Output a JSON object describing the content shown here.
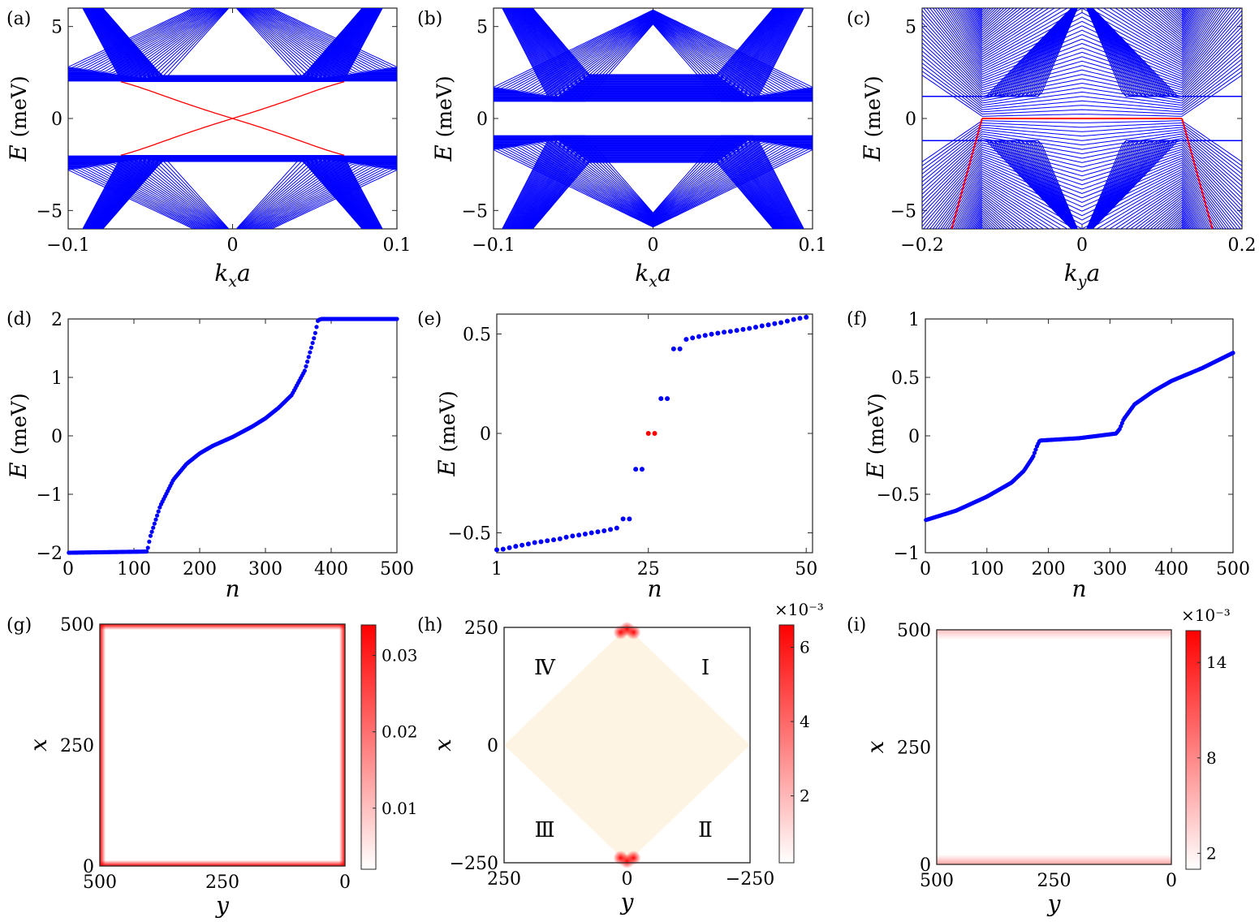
{
  "chart_data": [
    {
      "id": "a",
      "panel_label": "(a)",
      "type": "line",
      "xlabel": "k_x a",
      "xlabel_main": "k",
      "xlabel_sub": "x",
      "xlabel_tail": "a",
      "ylabel": "E (meV)",
      "ylabel_var": "E",
      "ylabel_unit": "(meV)",
      "xlim": [
        -0.1,
        0.1
      ],
      "ylim": [
        -6,
        6
      ],
      "xticks": [
        -0.1,
        0,
        0.1
      ],
      "xtick_labels": [
        "−0.1",
        "0",
        "0.1"
      ],
      "yticks": [
        -5,
        0,
        5
      ],
      "ytick_labels": [
        "−5",
        "0",
        "5"
      ],
      "series": [
        {
          "name": "bulk bands",
          "color": "#0000ff",
          "kind": "bands_gapped",
          "gap": 2.0,
          "edge_k": 0.068
        },
        {
          "name": "edge states",
          "color": "#ff0000",
          "kind": "edge_crossing",
          "k_range": [
            -0.068,
            0.068
          ],
          "E_end": 2.0
        }
      ]
    },
    {
      "id": "b",
      "panel_label": "(b)",
      "type": "line",
      "xlabel": "k_x a",
      "xlabel_main": "k",
      "xlabel_sub": "x",
      "xlabel_tail": "a",
      "ylabel": "E (meV)",
      "ylabel_var": "E",
      "ylabel_unit": "(meV)",
      "xlim": [
        -0.1,
        0.1
      ],
      "ylim": [
        -6,
        6
      ],
      "xticks": [
        -0.1,
        0,
        0.1
      ],
      "xtick_labels": [
        "−0.1",
        "0",
        "0.1"
      ],
      "yticks": [
        -5,
        0,
        5
      ],
      "ytick_labels": [
        "−5",
        "0",
        "5"
      ],
      "series": [
        {
          "name": "bulk bands",
          "color": "#0000ff",
          "kind": "bands_gapped",
          "gap": 0.9,
          "edge_k": 0.065
        }
      ]
    },
    {
      "id": "c",
      "panel_label": "(c)",
      "type": "line",
      "xlabel": "k_y a",
      "xlabel_main": "k",
      "xlabel_sub": "y",
      "xlabel_tail": "a",
      "ylabel": "E (meV)",
      "ylabel_var": "E",
      "ylabel_unit": "(meV)",
      "xlim": [
        -0.2,
        0.2
      ],
      "ylim": [
        -6,
        6
      ],
      "xticks": [
        -0.2,
        0,
        0.2
      ],
      "xtick_labels": [
        "−0.2",
        "0",
        "0.2"
      ],
      "yticks": [
        -5,
        0,
        5
      ],
      "ytick_labels": [
        "−5",
        "0",
        "5"
      ],
      "series": [
        {
          "name": "bulk bands",
          "color": "#0000ff",
          "kind": "bands_weyl",
          "node_k": 0.125
        },
        {
          "name": "flat edge state",
          "color": "#ff0000",
          "kind": "flat",
          "x": [
            -0.125,
            0.125
          ],
          "y": [
            0,
            0
          ]
        },
        {
          "name": "left edge branch",
          "color": "#ff0000",
          "kind": "line",
          "x": [
            -0.125,
            -0.163
          ],
          "y": [
            0,
            -6
          ]
        },
        {
          "name": "right edge branch",
          "color": "#ff0000",
          "kind": "line",
          "x": [
            0.125,
            0.163
          ],
          "y": [
            0,
            -6
          ]
        }
      ]
    },
    {
      "id": "d",
      "panel_label": "(d)",
      "type": "scatter",
      "xlabel": "n",
      "ylabel": "E (meV)",
      "ylabel_var": "E",
      "ylabel_unit": "(meV)",
      "xlim": [
        0,
        500
      ],
      "ylim": [
        -2,
        2
      ],
      "xticks": [
        0,
        100,
        200,
        300,
        400,
        500
      ],
      "xtick_labels": [
        "0",
        "100",
        "200",
        "300",
        "400",
        "500"
      ],
      "yticks": [
        -2,
        -1,
        0,
        1,
        2
      ],
      "ytick_labels": [
        "−2",
        "−1",
        "0",
        "1",
        "2"
      ],
      "curve": {
        "n": [
          1,
          120,
          125,
          140,
          160,
          180,
          200,
          220,
          250,
          280,
          300,
          320,
          340,
          360,
          375,
          380,
          385,
          500
        ],
        "E": [
          -2,
          -1.98,
          -1.72,
          -1.2,
          -0.75,
          -0.48,
          -0.3,
          -0.17,
          -0.02,
          0.16,
          0.3,
          0.48,
          0.7,
          1.12,
          1.72,
          1.98,
          2.0,
          2.0
        ]
      },
      "color": "#0000ff",
      "point_count": 250
    },
    {
      "id": "e",
      "panel_label": "(e)",
      "type": "scatter",
      "xlabel": "n",
      "ylabel": "E (meV)",
      "ylabel_var": "E",
      "ylabel_unit": "(meV)",
      "xlim": [
        1,
        51
      ],
      "ylim": [
        -0.6,
        0.6
      ],
      "xticks": [
        1,
        25,
        50
      ],
      "xtick_labels": [
        "1",
        "25",
        "50"
      ],
      "yticks": [
        -0.5,
        0,
        0.5
      ],
      "ytick_labels": [
        "−0.5",
        "0",
        "0.5"
      ],
      "points": [
        {
          "n": 1,
          "E": -0.585
        },
        {
          "n": 2,
          "E": -0.582
        },
        {
          "n": 3,
          "E": -0.575
        },
        {
          "n": 4,
          "E": -0.568
        },
        {
          "n": 5,
          "E": -0.562
        },
        {
          "n": 6,
          "E": -0.556
        },
        {
          "n": 7,
          "E": -0.549
        },
        {
          "n": 8,
          "E": -0.545
        },
        {
          "n": 9,
          "E": -0.54
        },
        {
          "n": 10,
          "E": -0.535
        },
        {
          "n": 11,
          "E": -0.53
        },
        {
          "n": 12,
          "E": -0.522
        },
        {
          "n": 13,
          "E": -0.516
        },
        {
          "n": 14,
          "E": -0.511
        },
        {
          "n": 15,
          "E": -0.506
        },
        {
          "n": 16,
          "E": -0.5
        },
        {
          "n": 17,
          "E": -0.495
        },
        {
          "n": 18,
          "E": -0.49
        },
        {
          "n": 19,
          "E": -0.483
        },
        {
          "n": 20,
          "E": -0.476
        },
        {
          "n": 21,
          "E": -0.43
        },
        {
          "n": 22,
          "E": -0.43
        },
        {
          "n": 23,
          "E": -0.18
        },
        {
          "n": 24,
          "E": -0.18
        },
        {
          "n": 25,
          "E": 0,
          "edge": true
        },
        {
          "n": 26,
          "E": 0,
          "edge": true
        },
        {
          "n": 27,
          "E": 0.175
        },
        {
          "n": 28,
          "E": 0.175
        },
        {
          "n": 29,
          "E": 0.425
        },
        {
          "n": 30,
          "E": 0.425
        },
        {
          "n": 31,
          "E": 0.473
        },
        {
          "n": 32,
          "E": 0.48
        },
        {
          "n": 33,
          "E": 0.487
        },
        {
          "n": 34,
          "E": 0.493
        },
        {
          "n": 35,
          "E": 0.499
        },
        {
          "n": 36,
          "E": 0.504
        },
        {
          "n": 37,
          "E": 0.509
        },
        {
          "n": 38,
          "E": 0.513
        },
        {
          "n": 39,
          "E": 0.518
        },
        {
          "n": 40,
          "E": 0.523
        },
        {
          "n": 41,
          "E": 0.528
        },
        {
          "n": 42,
          "E": 0.534
        },
        {
          "n": 43,
          "E": 0.541
        },
        {
          "n": 44,
          "E": 0.546
        },
        {
          "n": 45,
          "E": 0.552
        },
        {
          "n": 46,
          "E": 0.557
        },
        {
          "n": 47,
          "E": 0.565
        },
        {
          "n": 48,
          "E": 0.573
        },
        {
          "n": 49,
          "E": 0.579
        },
        {
          "n": 50,
          "E": 0.584
        }
      ],
      "color": "#0000ff",
      "edge_color": "#ff0000"
    },
    {
      "id": "f",
      "panel_label": "(f)",
      "type": "scatter",
      "xlabel": "n",
      "ylabel": "E (meV)",
      "ylabel_var": "E",
      "ylabel_unit": "(meV)",
      "xlim": [
        0,
        500
      ],
      "ylim": [
        -1,
        1
      ],
      "xticks": [
        0,
        100,
        200,
        300,
        400,
        500
      ],
      "xtick_labels": [
        "0",
        "100",
        "200",
        "300",
        "400",
        "500"
      ],
      "yticks": [
        -1,
        -0.5,
        0,
        0.5,
        1
      ],
      "ytick_labels": [
        "−1",
        "−0.5",
        "0",
        "0.5",
        "1"
      ],
      "curve": {
        "n": [
          1,
          50,
          100,
          140,
          160,
          175,
          182,
          186,
          250,
          310,
          316,
          322,
          340,
          370,
          400,
          450,
          500
        ],
        "E": [
          -0.72,
          -0.64,
          -0.52,
          -0.4,
          -0.3,
          -0.18,
          -0.08,
          -0.04,
          -0.02,
          0.02,
          0.06,
          0.14,
          0.27,
          0.38,
          0.47,
          0.58,
          0.71
        ]
      },
      "color": "#0000ff",
      "point_count": 250
    },
    {
      "id": "g",
      "panel_label": "(g)",
      "type": "heatmap",
      "xlabel": "y",
      "ylabel": "x",
      "xlim": [
        500,
        0
      ],
      "ylim": [
        0,
        500
      ],
      "xticks": [
        500,
        250,
        0
      ],
      "xtick_labels": [
        "500",
        "250",
        "0"
      ],
      "yticks": [
        0,
        250,
        500
      ],
      "ytick_labels": [
        "0",
        "250",
        "500"
      ],
      "geometry": "square",
      "edge_weight": "all edges",
      "colorbar": {
        "ticks": [
          0.01,
          0.02,
          0.03
        ],
        "tick_labels": [
          "0.01",
          "0.02",
          "0.03"
        ],
        "range": [
          0.002,
          0.034
        ],
        "multiplier": ""
      }
    },
    {
      "id": "h",
      "panel_label": "(h)",
      "type": "heatmap",
      "xlabel": "y",
      "ylabel": "x",
      "xlim": [
        250,
        -250
      ],
      "ylim": [
        -250,
        250
      ],
      "xticks": [
        250,
        0,
        -250
      ],
      "xtick_labels": [
        "250",
        "0",
        "−250"
      ],
      "yticks": [
        -250,
        0,
        250
      ],
      "ytick_labels": [
        "−250",
        "0",
        "250"
      ],
      "geometry": "diamond",
      "fill_color": "#fdf4e3",
      "edge_weight": "top and bottom corners",
      "regions": [
        "Ⅰ",
        "Ⅱ",
        "Ⅲ",
        "Ⅳ"
      ],
      "colorbar": {
        "ticks": [
          2,
          4,
          6
        ],
        "tick_labels": [
          "2",
          "4",
          "6"
        ],
        "range": [
          0.2,
          6.6
        ],
        "multiplier": "×10⁻³",
        "multiplier_base": "×10",
        "multiplier_exp": "−3"
      }
    },
    {
      "id": "i",
      "panel_label": "(i)",
      "type": "heatmap",
      "xlabel": "y",
      "ylabel": "x",
      "xlim": [
        500,
        0
      ],
      "ylim": [
        0,
        500
      ],
      "xticks": [
        500,
        250,
        0
      ],
      "xtick_labels": [
        "500",
        "250",
        "0"
      ],
      "yticks": [
        0,
        250,
        500
      ],
      "ytick_labels": [
        "0",
        "250",
        "500"
      ],
      "geometry": "square",
      "edge_weight": "top and bottom edges",
      "colorbar": {
        "ticks": [
          2,
          8,
          14
        ],
        "tick_labels": [
          "2",
          "8",
          "14"
        ],
        "range": [
          1,
          16
        ],
        "multiplier": "×10⁻³",
        "multiplier_base": "×10",
        "multiplier_exp": "−3"
      }
    }
  ]
}
